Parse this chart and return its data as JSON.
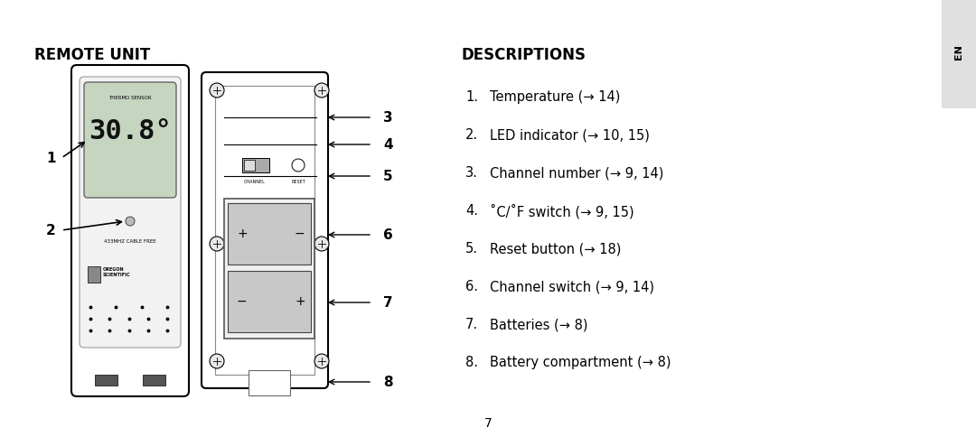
{
  "title_left": "REMOTE UNIT",
  "title_right": "DESCRIPTIONS",
  "page_number": "7",
  "tab_text": "EN",
  "tab_bg": "#e0e0e0",
  "bg_color": "#ffffff",
  "descriptions": [
    "Temperature (→ 14)",
    "LED indicator (→ 10, 15)",
    "Channel number (→ 9, 14)",
    "˚C/˚F switch (→ 9, 15)",
    "Reset button (→ 18)",
    "Channel switch (→ 9, 14)",
    "Batteries (→ 8)",
    "Battery compartment (→ 8)"
  ],
  "title_fontsize": 12,
  "desc_fontsize": 10.5
}
